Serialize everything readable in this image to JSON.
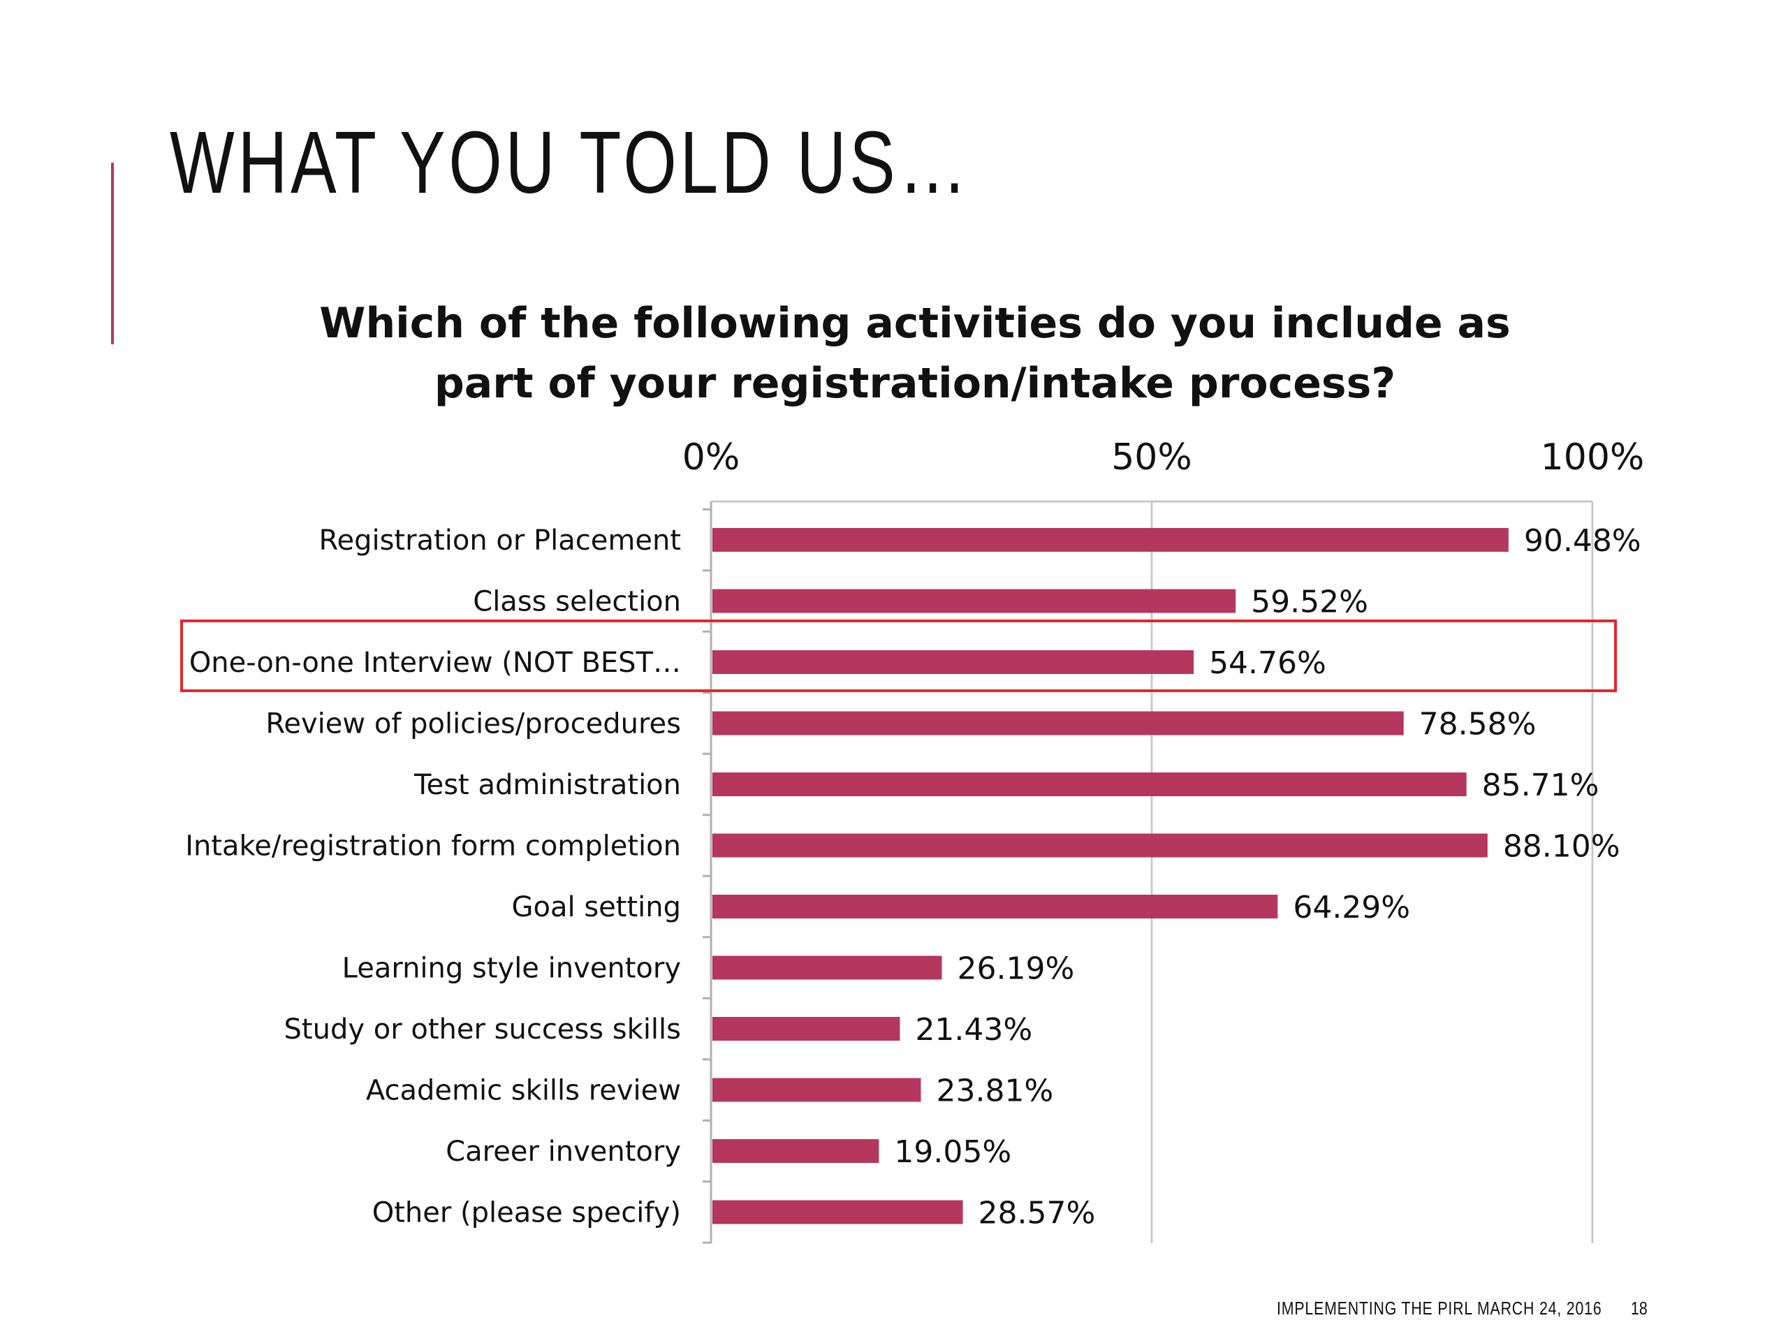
{
  "slide": {
    "title": "WHAT YOU TOLD US…",
    "footer": "IMPLEMENTING THE PIRL MARCH 24, 2016",
    "page_number": "18"
  },
  "colors": {
    "bar": "#b5365f",
    "accent": "#b5365f",
    "highlight": "#e8262b"
  },
  "chart_data": {
    "type": "bar",
    "orientation": "horizontal",
    "title": "Which of the following activities do you include as part of your registration/intake process?",
    "title_lines": [
      "Which of the following activities do you include as",
      "part of  your registration/intake process?"
    ],
    "xlim": [
      0,
      100
    ],
    "axis_position": "top",
    "ticks": [
      {
        "value": 0,
        "label": "0%"
      },
      {
        "value": 50,
        "label": "50%"
      },
      {
        "value": 100,
        "label": "100%"
      }
    ],
    "grid": true,
    "categories": [
      "Registration or Placement",
      "Class selection",
      "One-on-one Interview (NOT BEST…",
      "Review of policies/procedures",
      "Test administration",
      "Intake/registration form completion",
      "Goal setting",
      "Learning style inventory",
      "Study or other success skills",
      "Academic skills review",
      "Career inventory",
      "Other (please specify)"
    ],
    "values": [
      90.48,
      59.52,
      54.76,
      78.58,
      85.71,
      88.1,
      64.29,
      26.19,
      21.43,
      23.81,
      19.05,
      28.57
    ],
    "value_labels": [
      "90.48%",
      "59.52%",
      "54.76%",
      "78.58%",
      "85.71%",
      "88.10%",
      "64.29%",
      "26.19%",
      "21.43%",
      "23.81%",
      "19.05%",
      "28.57%"
    ],
    "highlighted_category": "One-on-one Interview (NOT BEST…"
  }
}
